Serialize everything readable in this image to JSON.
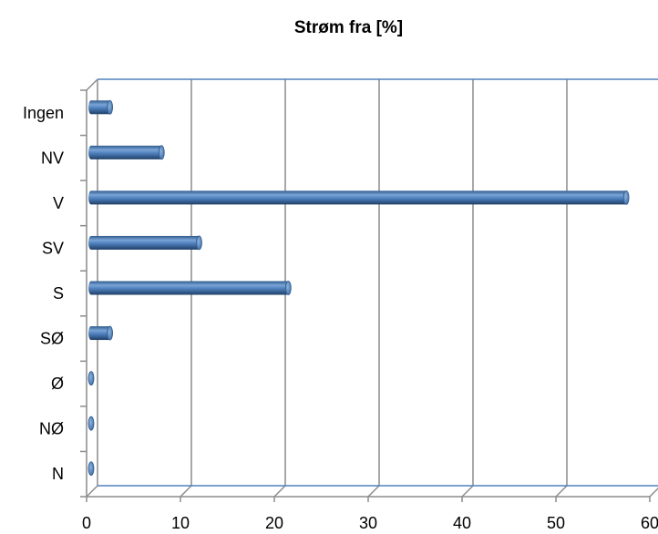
{
  "chart_data": {
    "type": "bar",
    "orientation": "horizontal",
    "title": "Strøm fra [%]",
    "xlabel": "",
    "ylabel": "",
    "categories": [
      "N",
      "NØ",
      "Ø",
      "SØ",
      "S",
      "SV",
      "V",
      "NV",
      "Ingen"
    ],
    "values": [
      0,
      0,
      0,
      2,
      21,
      11.5,
      57,
      7.5,
      2
    ],
    "xlim": [
      0,
      60
    ],
    "x_ticks": [
      0,
      10,
      20,
      30,
      40,
      50,
      60
    ],
    "grid": true,
    "legend": "none",
    "bar_color": "#4F81BD",
    "style": "3d-cylinder"
  }
}
